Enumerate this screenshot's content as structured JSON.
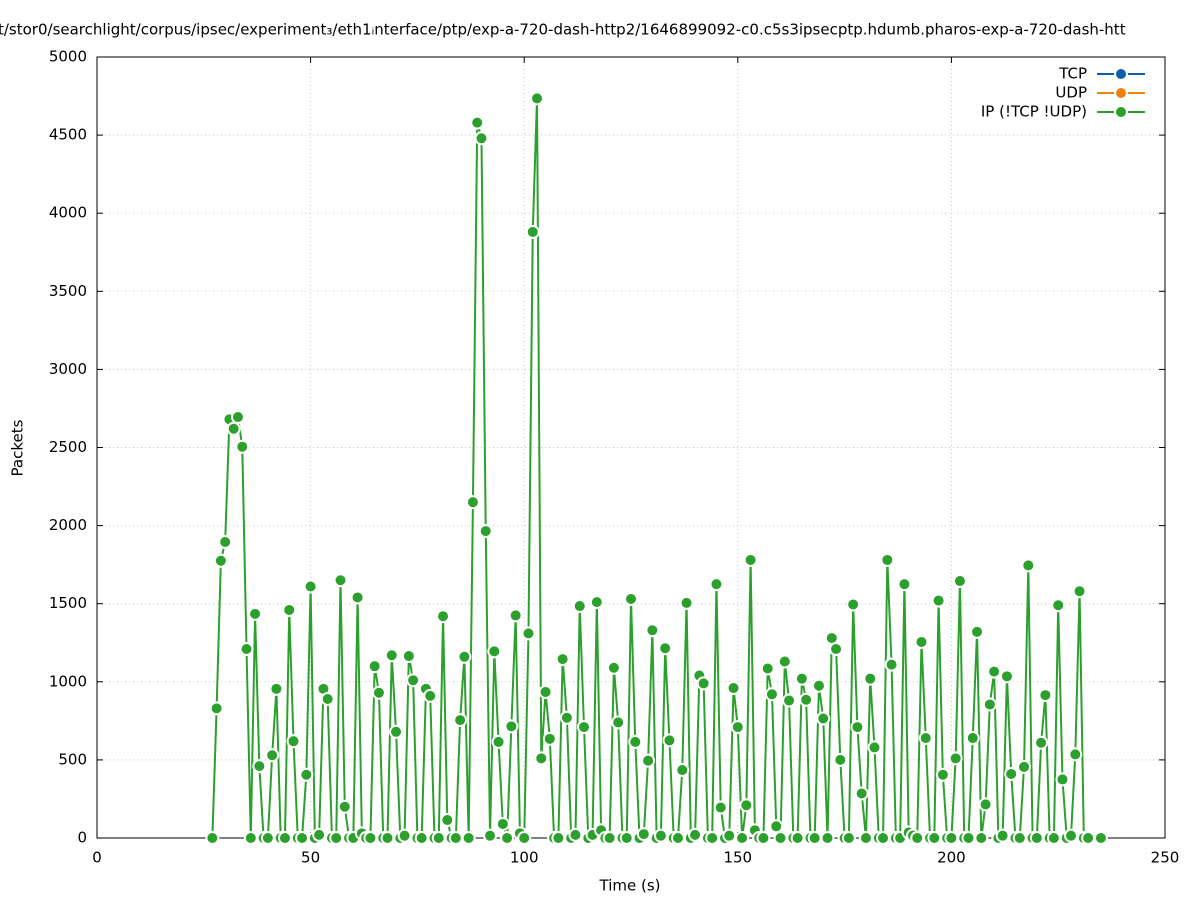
{
  "chart_data": {
    "type": "line",
    "title": "t/stor0/searchlight/corpus/ipsec/experiment₃/eth1ᵢnterface/ptp/exp-a-720-dash-http2/1646899092-c0.c5s3ipsecptp.hdumb.pharos-exp-a-720-dash-htt",
    "x_label": "Time (s)",
    "y_label": "Packets",
    "xlim": [
      0,
      250
    ],
    "xticks": [
      0,
      50,
      100,
      150,
      200,
      250
    ],
    "ylim": [
      0,
      5000
    ],
    "yticks": [
      0,
      500,
      1000,
      1500,
      2000,
      2500,
      3000,
      3500,
      4000,
      4500,
      5000
    ],
    "grid": true,
    "legend": "top-right",
    "series": [
      {
        "name": "TCP",
        "color": "#0b60ad",
        "x": [],
        "values": []
      },
      {
        "name": "UDP",
        "color": "#f07f12",
        "x": [],
        "values": []
      },
      {
        "name": "IP (!TCP  !UDP)",
        "color": "#2ca02c",
        "x": [
          27,
          28,
          29,
          30,
          31,
          32,
          33,
          34,
          35,
          36,
          37,
          38,
          39,
          40,
          41,
          42,
          43,
          44,
          45,
          46,
          47,
          48,
          49,
          50,
          51,
          52,
          53,
          54,
          55,
          56,
          57,
          58,
          59,
          60,
          61,
          62,
          63,
          64,
          65,
          66,
          67,
          68,
          69,
          70,
          71,
          72,
          73,
          74,
          75,
          76,
          77,
          78,
          79,
          80,
          81,
          82,
          83,
          84,
          85,
          86,
          87,
          88,
          89,
          90,
          91,
          92,
          93,
          94,
          95,
          96,
          97,
          98,
          99,
          100,
          101,
          102,
          103,
          104,
          105,
          106,
          107,
          108,
          109,
          110,
          111,
          112,
          113,
          114,
          115,
          116,
          117,
          118,
          119,
          120,
          121,
          122,
          123,
          124,
          125,
          126,
          127,
          128,
          129,
          130,
          131,
          132,
          133,
          134,
          135,
          136,
          137,
          138,
          139,
          140,
          141,
          142,
          143,
          144,
          145,
          146,
          147,
          148,
          149,
          150,
          151,
          152,
          153,
          154,
          155,
          156,
          157,
          158,
          159,
          160,
          161,
          162,
          163,
          164,
          165,
          166,
          167,
          168,
          169,
          170,
          171,
          172,
          173,
          174,
          175,
          176,
          177,
          178,
          179,
          180,
          181,
          182,
          183,
          184,
          185,
          186,
          187,
          188,
          189,
          190,
          191,
          192,
          193,
          194,
          195,
          196,
          197,
          198,
          199,
          200,
          201,
          202,
          203,
          204,
          205,
          206,
          207,
          208,
          209,
          210,
          211,
          212,
          213,
          214,
          215,
          216,
          217,
          218,
          219,
          220,
          221,
          222,
          223,
          224,
          225,
          226,
          227,
          228,
          229,
          230,
          231,
          232,
          235
        ],
        "values": [
          0,
          830,
          1775,
          1895,
          2680,
          2620,
          2695,
          2505,
          1210,
          0,
          1435,
          460,
          0,
          0,
          530,
          955,
          0,
          0,
          1460,
          620,
          0,
          0,
          405,
          1610,
          0,
          20,
          955,
          890,
          0,
          0,
          1650,
          200,
          0,
          0,
          1540,
          30,
          0,
          0,
          1100,
          930,
          0,
          0,
          1170,
          680,
          0,
          15,
          1165,
          1010,
          0,
          0,
          955,
          910,
          0,
          0,
          1420,
          115,
          0,
          0,
          755,
          1160,
          0,
          2150,
          4580,
          4480,
          1965,
          15,
          1195,
          615,
          90,
          0,
          715,
          1425,
          30,
          0,
          1310,
          3880,
          4735,
          510,
          935,
          635,
          0,
          0,
          1145,
          770,
          0,
          20,
          1485,
          710,
          0,
          20,
          1510,
          50,
          0,
          0,
          1090,
          740,
          0,
          0,
          1530,
          615,
          0,
          25,
          495,
          1330,
          0,
          15,
          1215,
          625,
          0,
          0,
          435,
          1505,
          0,
          20,
          1040,
          990,
          0,
          0,
          1625,
          195,
          0,
          15,
          960,
          710,
          0,
          210,
          1780,
          50,
          0,
          0,
          1085,
          920,
          75,
          0,
          1130,
          880,
          0,
          0,
          1020,
          885,
          0,
          0,
          975,
          765,
          0,
          1280,
          1210,
          500,
          0,
          0,
          1495,
          710,
          285,
          0,
          1020,
          580,
          0,
          0,
          1780,
          1110,
          0,
          0,
          1625,
          35,
          15,
          0,
          1255,
          640,
          0,
          0,
          1520,
          405,
          0,
          0,
          510,
          1645,
          0,
          0,
          640,
          1320,
          0,
          215,
          855,
          1065,
          0,
          15,
          1035,
          410,
          0,
          0,
          455,
          1745,
          0,
          0,
          610,
          915,
          0,
          0,
          1490,
          375,
          0,
          15,
          535,
          1580,
          0,
          0,
          0
        ]
      }
    ]
  }
}
